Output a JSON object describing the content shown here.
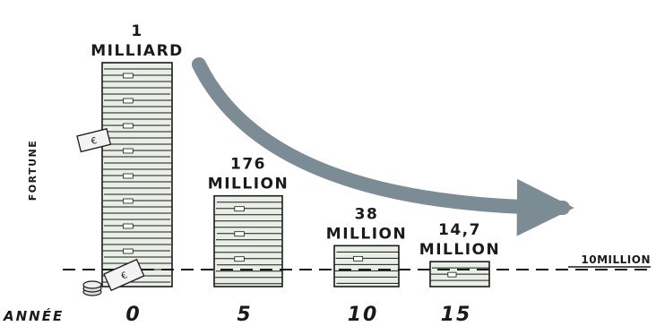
{
  "chart_data": {
    "type": "bar",
    "title": "",
    "xlabel": "ANNÉE",
    "ylabel": "FORTUNE",
    "categories": [
      "0",
      "5",
      "10",
      "15"
    ],
    "values": [
      1000,
      176,
      38,
      14.7
    ],
    "value_labels": [
      [
        "1",
        "MILLIARD"
      ],
      [
        "176",
        "MILLION"
      ],
      [
        "38",
        "MILLION"
      ],
      [
        "14,7",
        "MILLION"
      ]
    ],
    "value_unit": "millions",
    "reference_line": {
      "value": 10,
      "label": "10MILLION"
    },
    "trend_arrow": "decreasing",
    "legend": "none",
    "grid": false,
    "colors": {
      "ink": "#1a1a1a",
      "money": "#e9efe6",
      "arrow": "#7b8c95"
    }
  }
}
